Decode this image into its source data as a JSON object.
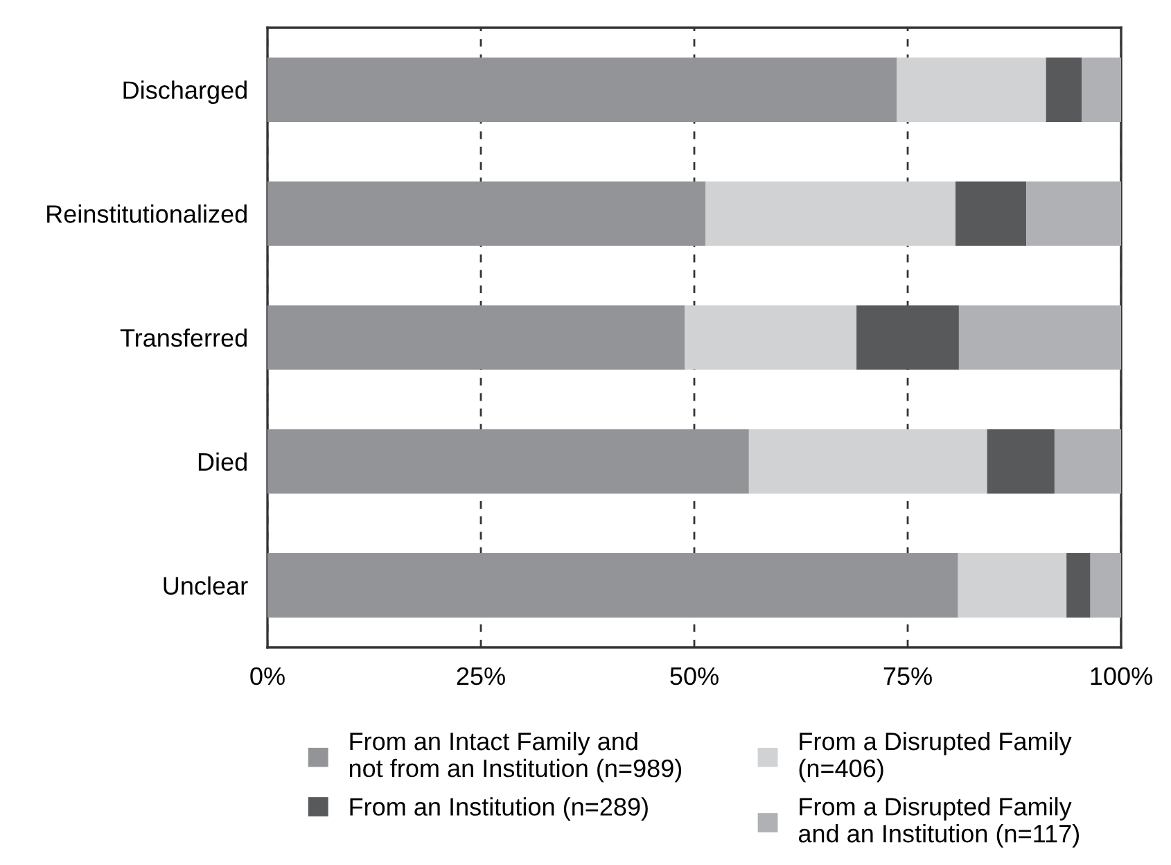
{
  "chart_data": {
    "type": "bar",
    "orientation": "horizontal",
    "stacked": true,
    "categories": [
      "Discharged",
      "Reinstitutionalized",
      "Transferred",
      "Died",
      "Unclear"
    ],
    "series": [
      {
        "name": "From an Intact Family and\nnot from an Institution (n=989)",
        "color": "#939498",
        "values": [
          73.7,
          51.3,
          48.9,
          56.4,
          80.9
        ]
      },
      {
        "name": "From a Disrupted Family\n(n=406)",
        "color": "#d1d2d4",
        "values": [
          17.5,
          29.3,
          20.1,
          27.9,
          12.7
        ]
      },
      {
        "name": "From an Institution (n=289)",
        "color": "#58595b",
        "values": [
          4.2,
          8.3,
          12.0,
          7.9,
          2.8
        ]
      },
      {
        "name": "From a Disrupted Family\nand an Institution (n=117)",
        "color": "#b0b1b4",
        "values": [
          4.6,
          11.1,
          19.0,
          7.8,
          3.6
        ]
      }
    ],
    "xlim": [
      0,
      100
    ],
    "xticks": [
      {
        "value": 0,
        "label": "0%"
      },
      {
        "value": 25,
        "label": "25%"
      },
      {
        "value": 50,
        "label": "50%"
      },
      {
        "value": 75,
        "label": "75%"
      },
      {
        "value": 100,
        "label": "100%"
      }
    ],
    "grid": "x",
    "line_style": "dashed",
    "legend": "bottom"
  }
}
